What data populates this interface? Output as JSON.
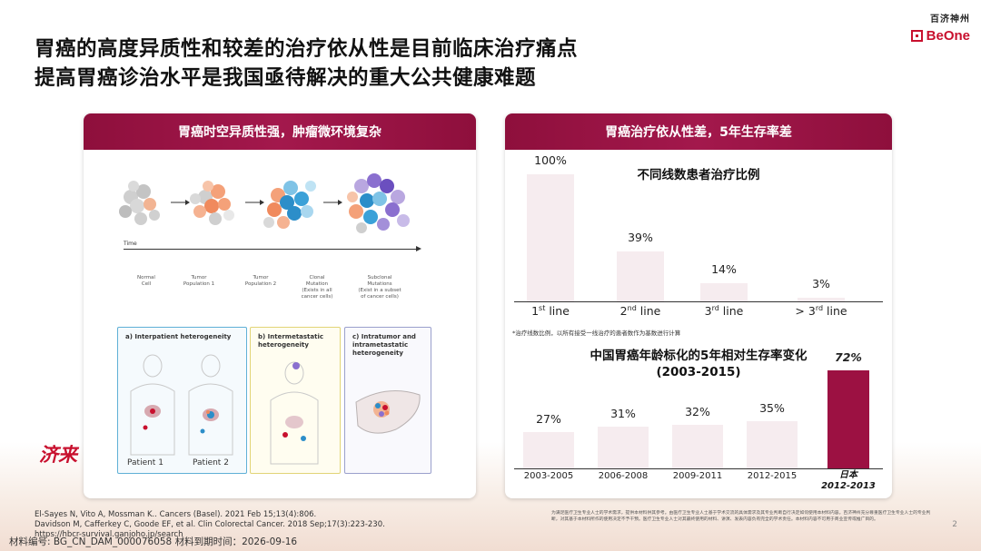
{
  "title": {
    "line1": "胃癌的高度异质性和较差的治疗依从性是目前临床治疗痛点",
    "line2": "提高胃癌诊治水平是我国亟待解决的重大公共健康难题"
  },
  "logo": {
    "cn": "百济神州",
    "en": "BeOne"
  },
  "left_card": {
    "header": "胃癌时空异质性强，肿瘤微环境复杂",
    "timeline_label": "Time",
    "legend": [
      {
        "label": "Normal\nCell"
      },
      {
        "label": "Tumor\nPopulation 1"
      },
      {
        "label": "Tumor\nPopulation 2"
      },
      {
        "label": "Clonal\nMutation\n(Exists in all\ncancer cells)"
      },
      {
        "label": "Subclonal\nMutations\n(Exist in a subset\nof cancer cells)"
      }
    ],
    "panels": {
      "a": "a) Interpatient heterogeneity",
      "b": "b) Intermetastatic\nheterogeneity",
      "c": "c) Intratumor and\nintrametastatic\nheterogeneity"
    },
    "patients": [
      "Patient 1",
      "Patient 2"
    ]
  },
  "right_card": {
    "header": "胃癌治疗依从性差，5年生存率差",
    "chart1_title": "不同线数患者治疗比例",
    "chart1_note": "*治疗线数比例，以所有接受一线治疗的患者数作为基数进行计算",
    "chart2_title_line1": "中国胃癌年龄标化的5年相对生存率变化",
    "chart2_title_line2": "(2003-2015)",
    "highlight_label_line1": "日本",
    "highlight_label_line2": "2012-2013"
  },
  "chart_data": [
    {
      "type": "bar",
      "title": "不同线数患者治疗比例",
      "categories": [
        "1st line",
        "2nd line",
        "3rd line",
        "> 3rd line"
      ],
      "tick_labels": [
        {
          "base": "1",
          "sup": "st",
          "rest": " line"
        },
        {
          "base": "2",
          "sup": "nd",
          "rest": " line"
        },
        {
          "base": "3",
          "sup": "rd",
          "rest": " line"
        },
        {
          "base": "> 3",
          "sup": "rd",
          "rest": " line"
        }
      ],
      "values": [
        100,
        39,
        14,
        3
      ],
      "value_labels": [
        "100%",
        "39%",
        "14%",
        "3%"
      ],
      "ylim": [
        0,
        100
      ],
      "colors": [
        "#f6ecef"
      ]
    },
    {
      "type": "bar",
      "title": "中国胃癌年龄标化的5年相对生存率变化 (2003-2015)",
      "categories": [
        "2003-2005",
        "2006-2008",
        "2009-2011",
        "2012-2015",
        "日本 2012-2013"
      ],
      "values": [
        27,
        31,
        32,
        35,
        72
      ],
      "value_labels": [
        "27%",
        "31%",
        "32%",
        "35%",
        "72%"
      ],
      "ylim": [
        0,
        72
      ],
      "colors": [
        "#f6ecef",
        "#9c1142"
      ]
    }
  ],
  "references": {
    "line1": "El-Sayes N, Vito A, Mossman K.. Cancers (Basel). 2021 Feb 15;13(4):806.",
    "line2": "Davidson M, Cafferkey C, Goode EF, et al. Clin Colorectal Cancer. 2018 Sep;17(3):223-230.",
    "line3": "https://hbcr-survival.ganjoho.jp/search"
  },
  "footer": "材料编号: BG_CN_DAM_000076058  材料到期时间：2026-09-16",
  "disclaimer": "为满足医疗卫生专业人士的学术需求，提供本材料供其参考。由医疗卫生专业人士基于学术交流的具体需求及其专业判断自行决定如何使用本材料内容。百济神州充分尊重医疗卫生专业人士的专业判断，对其基于本材料所作的使用决定不予干预。医疗卫生专业人士对其最终使用的材料、讲演、发表内容负有完全的学术责任。本材料内容不可用于商业宣传或推广目的。",
  "page_number": "2",
  "stamp": "济来",
  "colors": {
    "brand": "#c8102e",
    "header": "#9c1142",
    "bar_light": "#f6ecef"
  }
}
